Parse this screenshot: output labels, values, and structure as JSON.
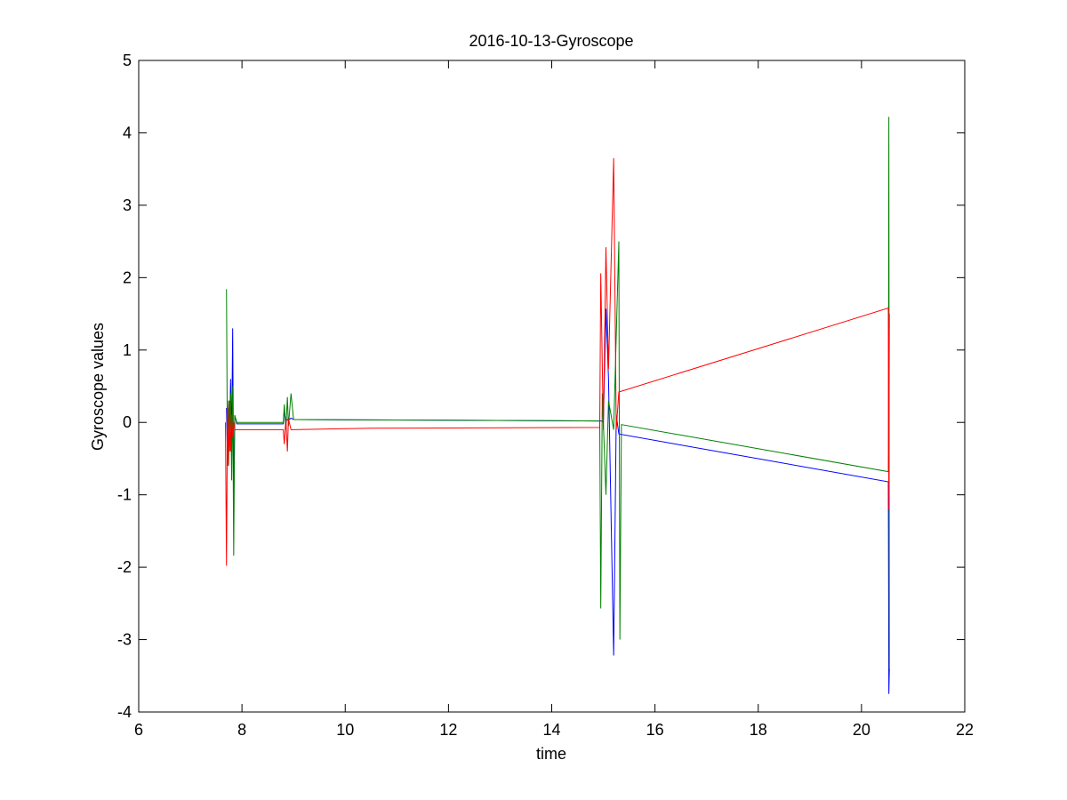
{
  "chart_data": {
    "type": "line",
    "title": "2016-10-13-Gyroscope",
    "xlabel": "time",
    "ylabel": "Gyroscope values",
    "xlim": [
      6,
      22
    ],
    "ylim": [
      -4,
      5
    ],
    "xticks": [
      6,
      8,
      10,
      12,
      14,
      16,
      18,
      20,
      22
    ],
    "yticks": [
      -4,
      -3,
      -2,
      -1,
      0,
      1,
      2,
      3,
      4,
      5
    ],
    "grid": false,
    "legend": "none",
    "series": [
      {
        "color": "#0000ff",
        "x": [
          7.7,
          7.72,
          7.74,
          7.76,
          7.78,
          7.8,
          7.82,
          7.84,
          7.86,
          7.9,
          8.0,
          8.8,
          8.82,
          8.85,
          8.88,
          8.9,
          8.95,
          9.0,
          9.05,
          14.95,
          14.98,
          15.0,
          15.05,
          15.1,
          15.2,
          15.25,
          15.3,
          20.52,
          20.53,
          20.54
        ],
        "y": [
          0.2,
          -0.5,
          0.3,
          -0.2,
          0.6,
          -0.3,
          1.3,
          -1.1,
          0.1,
          -0.02,
          -0.02,
          -0.02,
          0.15,
          0.02,
          0.04,
          0.03,
          0.06,
          0.04,
          0.04,
          0.02,
          0.02,
          0.0,
          1.57,
          0.6,
          -3.22,
          0.1,
          -0.16,
          -0.82,
          -3.75,
          -3.4
        ]
      },
      {
        "color": "#008000",
        "x": [
          7.7,
          7.72,
          7.74,
          7.76,
          7.78,
          7.8,
          7.82,
          7.84,
          7.86,
          7.9,
          8.0,
          8.8,
          8.82,
          8.85,
          8.88,
          8.9,
          8.95,
          9.0,
          9.05,
          14.93,
          14.95,
          14.98,
          15.0,
          15.05,
          15.1,
          15.2,
          15.3,
          15.32,
          15.35,
          20.52,
          20.53,
          20.54
        ],
        "y": [
          1.84,
          -0.6,
          0.3,
          -0.4,
          0.4,
          -0.8,
          0.5,
          -1.84,
          0.1,
          0.0,
          0.0,
          0.0,
          0.25,
          -0.1,
          0.35,
          -0.05,
          0.4,
          0.04,
          0.04,
          0.02,
          -2.57,
          0.4,
          0.0,
          -1.0,
          0.3,
          -0.1,
          2.5,
          -3.0,
          -0.03,
          -0.68,
          4.22,
          -3.4
        ]
      },
      {
        "color": "#ff0000",
        "x": [
          7.68,
          7.7,
          7.72,
          7.74,
          7.76,
          7.78,
          7.8,
          7.82,
          7.84,
          7.86,
          7.9,
          8.0,
          8.8,
          8.82,
          8.85,
          8.88,
          8.9,
          8.95,
          9.0,
          10.5,
          14.93,
          14.95,
          15.0,
          15.05,
          15.1,
          15.2,
          15.25,
          15.3,
          20.52,
          20.53,
          20.54
        ],
        "y": [
          0.0,
          -1.98,
          0.2,
          -0.6,
          0.3,
          -0.4,
          0.1,
          -0.2,
          0.0,
          -0.1,
          -0.1,
          -0.1,
          -0.1,
          -0.3,
          0.05,
          -0.4,
          0.05,
          -0.1,
          -0.1,
          -0.08,
          -0.07,
          2.06,
          -0.1,
          2.42,
          0.74,
          3.65,
          -0.1,
          0.42,
          1.58,
          -1.2,
          1.5
        ]
      }
    ]
  }
}
